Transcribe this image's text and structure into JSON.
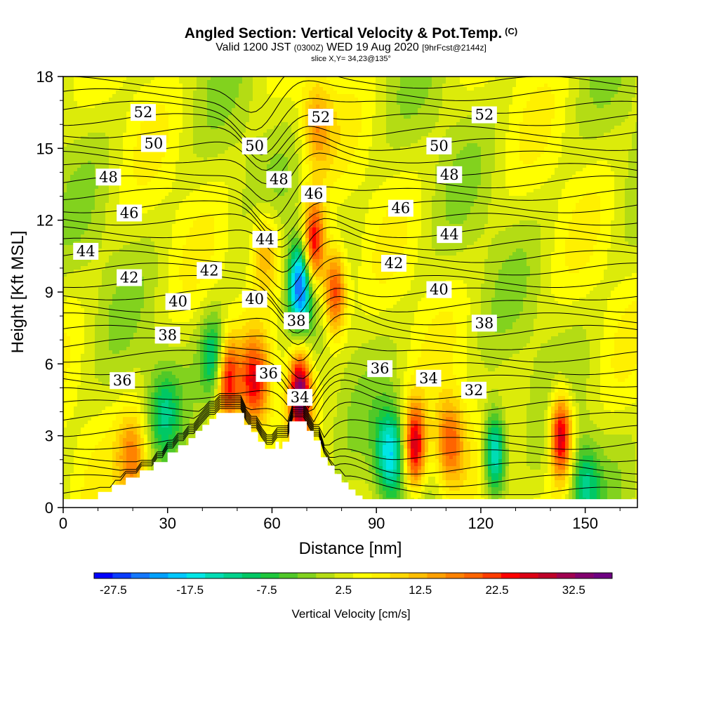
{
  "title": "Angled Section: Vertical Velocity & Pot.Temp.",
  "copyright": "(C)",
  "subtitle": {
    "prefix": "Valid 1200 JST",
    "utc": "(0300Z)",
    "date": "WED 19 Aug 2020",
    "fcst": "[9hrFcst@2144z]"
  },
  "slice": "slice X,Y= 34,23@135°",
  "chart_data": {
    "type": "heatmap",
    "xlabel": "Distance [nm]",
    "ylabel": "Height [Kft MSL]",
    "xlim": [
      0,
      165
    ],
    "ylim": [
      0,
      18
    ],
    "x_ticks": [
      "0",
      "30",
      "60",
      "90",
      "120",
      "150"
    ],
    "y_ticks": [
      "0",
      "3",
      "6",
      "9",
      "12",
      "15",
      "18"
    ],
    "colorbar": {
      "label": "Vertical Velocity [cm/s]",
      "tick_labels": [
        "-27.5",
        "-17.5",
        "-7.5",
        "2.5",
        "12.5",
        "22.5",
        "32.5"
      ],
      "range": [
        -30,
        37.5
      ],
      "colors": [
        "#0000ff",
        "#0a3cff",
        "#1478ff",
        "#00a0ff",
        "#00c8ff",
        "#00e6e6",
        "#00dcb4",
        "#00d28c",
        "#00c864",
        "#1ec83c",
        "#50c828",
        "#82d21e",
        "#b4dc14",
        "#dceb0a",
        "#ffff00",
        "#fff000",
        "#ffd700",
        "#ffbe00",
        "#ffa000",
        "#ff8200",
        "#ff6400",
        "#ff3c00",
        "#ff0000",
        "#dc0014",
        "#be0028",
        "#a00050",
        "#82006e",
        "#6e0082"
      ]
    },
    "field": "vertical velocity [cm/s]",
    "velocity_features": [
      {
        "x": 47,
        "y": 5.5,
        "value": 25
      },
      {
        "x": 55,
        "y": 5.2,
        "value": 20
      },
      {
        "x": 58,
        "y": 10.8,
        "value": 12
      },
      {
        "x": 68,
        "y": 4.8,
        "value": 33
      },
      {
        "x": 72,
        "y": 11,
        "value": 25
      },
      {
        "x": 78,
        "y": 9,
        "value": 22
      },
      {
        "x": 73,
        "y": 16,
        "value": 12
      },
      {
        "x": 68,
        "y": 9.3,
        "value": -27
      },
      {
        "x": 44,
        "y": 6.2,
        "value": -18
      },
      {
        "x": 94,
        "y": 2.3,
        "value": -20
      },
      {
        "x": 101,
        "y": 2.5,
        "value": 27
      },
      {
        "x": 111,
        "y": 2.7,
        "value": 18
      },
      {
        "x": 124,
        "y": 2.3,
        "value": -22
      },
      {
        "x": 143,
        "y": 3,
        "value": 28
      },
      {
        "x": 150,
        "y": 1,
        "value": -12
      },
      {
        "x": 20,
        "y": 2,
        "value": 15
      },
      {
        "x": 29,
        "y": 4,
        "value": -10
      }
    ],
    "theta_contour_labels": [
      {
        "text": "52",
        "x": 23,
        "y": 16.5
      },
      {
        "text": "50",
        "x": 26,
        "y": 15.2
      },
      {
        "text": "48",
        "x": 13,
        "y": 13.8
      },
      {
        "text": "46",
        "x": 19,
        "y": 12.3
      },
      {
        "text": "44",
        "x": 6.5,
        "y": 10.7
      },
      {
        "text": "42",
        "x": 19,
        "y": 9.6
      },
      {
        "text": "40",
        "x": 33,
        "y": 8.6
      },
      {
        "text": "38",
        "x": 30,
        "y": 7.2
      },
      {
        "text": "36",
        "x": 17,
        "y": 5.3
      },
      {
        "text": "42",
        "x": 42,
        "y": 9.9
      },
      {
        "text": "40",
        "x": 55,
        "y": 8.7
      },
      {
        "text": "36",
        "x": 59,
        "y": 5.6
      },
      {
        "text": "34",
        "x": 68,
        "y": 4.6
      },
      {
        "text": "38",
        "x": 67,
        "y": 7.8
      },
      {
        "text": "44",
        "x": 58,
        "y": 11.2
      },
      {
        "text": "48",
        "x": 62,
        "y": 13.7
      },
      {
        "text": "50",
        "x": 55,
        "y": 15.1
      },
      {
        "text": "46",
        "x": 72,
        "y": 13.1
      },
      {
        "text": "52",
        "x": 74,
        "y": 16.3
      },
      {
        "text": "46",
        "x": 97,
        "y": 12.5
      },
      {
        "text": "42",
        "x": 95,
        "y": 10.2
      },
      {
        "text": "40",
        "x": 108,
        "y": 9.1
      },
      {
        "text": "38",
        "x": 121,
        "y": 7.7
      },
      {
        "text": "36",
        "x": 91,
        "y": 5.8
      },
      {
        "text": "34",
        "x": 105,
        "y": 5.4
      },
      {
        "text": "32",
        "x": 118,
        "y": 4.9
      },
      {
        "text": "44",
        "x": 111,
        "y": 11.4
      },
      {
        "text": "48",
        "x": 111,
        "y": 13.9
      },
      {
        "text": "50",
        "x": 108,
        "y": 15.1
      },
      {
        "text": "52",
        "x": 121,
        "y": 16.4
      }
    ],
    "terrain_profile": [
      [
        0,
        0.35
      ],
      [
        10,
        0.35
      ],
      [
        10,
        0.65
      ],
      [
        14,
        0.65
      ],
      [
        14,
        0.95
      ],
      [
        18,
        0.95
      ],
      [
        18,
        1.25
      ],
      [
        22,
        1.25
      ],
      [
        22,
        1.55
      ],
      [
        26,
        1.55
      ],
      [
        26,
        1.9
      ],
      [
        30,
        1.9
      ],
      [
        30,
        2.3
      ],
      [
        33,
        2.3
      ],
      [
        33,
        2.6
      ],
      [
        36,
        2.6
      ],
      [
        36,
        2.9
      ],
      [
        38,
        2.9
      ],
      [
        38,
        3.2
      ],
      [
        40,
        3.2
      ],
      [
        40,
        3.45
      ],
      [
        42,
        3.45
      ],
      [
        42,
        3.7
      ],
      [
        44,
        3.7
      ],
      [
        44,
        3.95
      ],
      [
        52,
        3.95
      ],
      [
        52,
        3.45
      ],
      [
        54,
        3.45
      ],
      [
        54,
        3.15
      ],
      [
        56,
        3.15
      ],
      [
        56,
        2.75
      ],
      [
        58,
        2.75
      ],
      [
        58,
        2.45
      ],
      [
        61,
        2.45
      ],
      [
        61,
        2.75
      ],
      [
        62,
        2.75
      ],
      [
        62,
        2.45
      ],
      [
        63,
        2.45
      ],
      [
        63,
        2.75
      ],
      [
        65,
        2.75
      ],
      [
        65,
        3.6
      ],
      [
        70,
        3.6
      ],
      [
        70,
        3.2
      ],
      [
        72,
        3.2
      ],
      [
        72,
        2.8
      ],
      [
        74,
        2.8
      ],
      [
        74,
        2.1
      ],
      [
        76,
        2.1
      ],
      [
        76,
        1.75
      ],
      [
        78,
        1.75
      ],
      [
        78,
        1.4
      ],
      [
        80,
        1.4
      ],
      [
        80,
        1.05
      ],
      [
        82,
        1.05
      ],
      [
        82,
        0.75
      ],
      [
        84,
        0.75
      ],
      [
        84,
        0.5
      ],
      [
        86,
        0.5
      ],
      [
        86,
        0.35
      ],
      [
        165,
        0.35
      ]
    ]
  }
}
